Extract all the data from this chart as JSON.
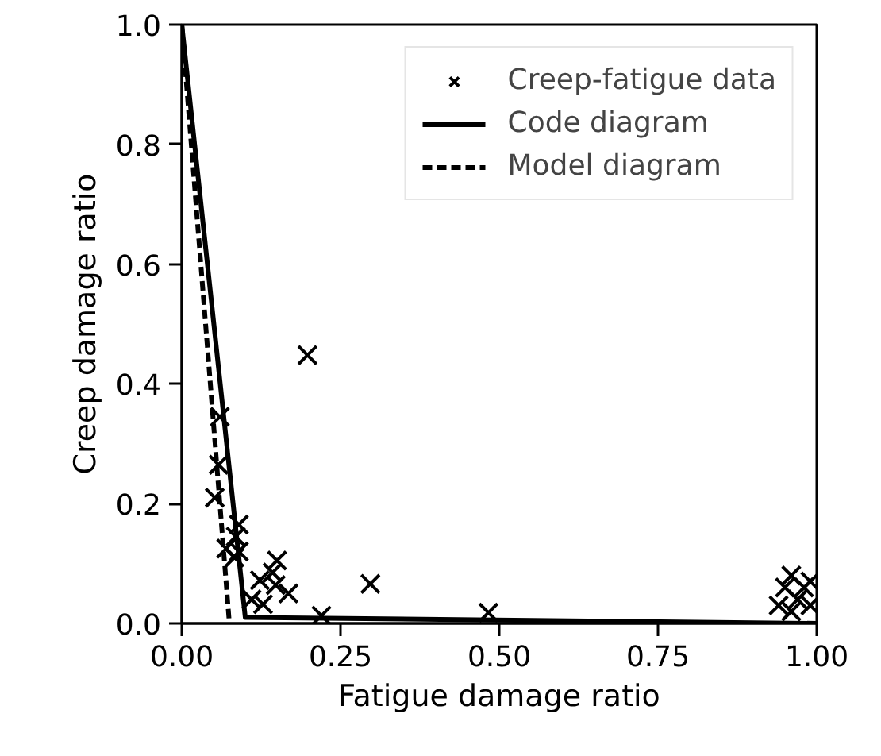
{
  "chart_data": {
    "type": "scatter",
    "xlabel": "Fatigue damage ratio",
    "ylabel": "Creep damage ratio",
    "xlim": [
      0,
      1
    ],
    "ylim": [
      0,
      1
    ],
    "xticks": [
      {
        "value": 0,
        "label": "0.00"
      },
      0.25,
      {
        "value": 0.5,
        "label": "0.50"
      },
      0.75,
      {
        "value": 1,
        "label": "1.00"
      }
    ],
    "yticks": [
      {
        "value": 0,
        "label": "0.0"
      },
      0.2,
      0.4,
      0.6,
      0.8,
      {
        "value": 1,
        "label": "1.0"
      }
    ],
    "grid": false,
    "legend": "top right",
    "series": [
      {
        "name": "Creep-fatigue data",
        "marker": "cross",
        "color": "#000000",
        "x": [
          0.06,
          0.058,
          0.052,
          0.09,
          0.07,
          0.09,
          0.085,
          0.083,
          0.15,
          0.143,
          0.123,
          0.168,
          0.148,
          0.128,
          0.11,
          0.22,
          0.198,
          0.297,
          0.483,
          0.94,
          0.95,
          0.96,
          0.97,
          0.98,
          0.99,
          0.96,
          0.99
        ],
        "values": [
          0.345,
          0.265,
          0.21,
          0.165,
          0.125,
          0.12,
          0.145,
          0.11,
          0.105,
          0.085,
          0.072,
          0.05,
          0.064,
          0.032,
          0.04,
          0.013,
          0.448,
          0.066,
          0.018,
          0.03,
          0.06,
          0.08,
          0.04,
          0.06,
          0.03,
          0.02,
          0.07
        ]
      },
      {
        "name": "Code diagram",
        "type": "line",
        "line_style": "solid",
        "color": "#000000",
        "x": [
          0,
          0.1,
          1
        ],
        "values": [
          1,
          0.01,
          0
        ]
      },
      {
        "name": "Model diagram",
        "type": "line",
        "line_style": "dashed",
        "color": "#000000",
        "x": [
          0,
          0.075
        ],
        "values": [
          1,
          0
        ]
      }
    ]
  }
}
